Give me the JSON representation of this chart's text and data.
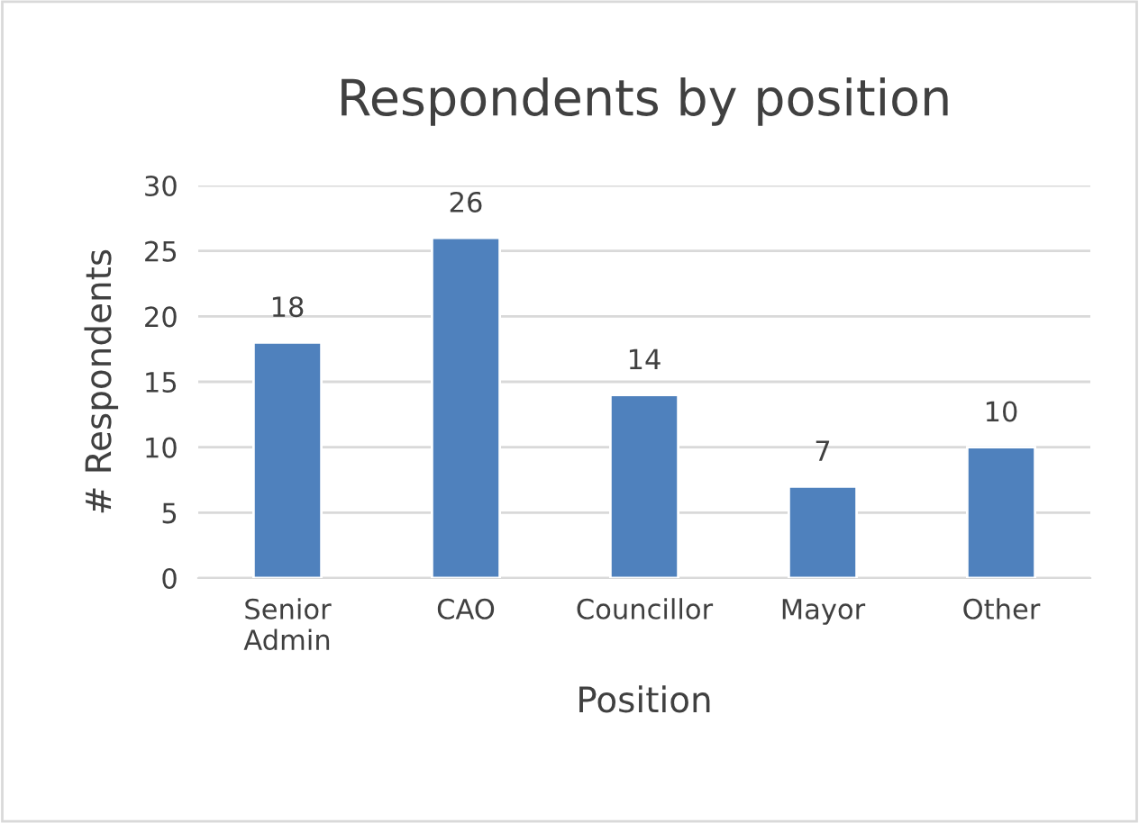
{
  "chart_data": {
    "type": "bar",
    "title": "Respondents by position",
    "xlabel": "Position",
    "ylabel": "# Respondents",
    "categories": [
      "Senior Admin",
      "CAO",
      "Councillor",
      "Mayor",
      "Other"
    ],
    "values": [
      18,
      26,
      14,
      7,
      10
    ],
    "color": "#4f81bd",
    "ylim": [
      0,
      30
    ],
    "yticks": [
      0,
      5,
      10,
      15,
      20,
      25,
      30
    ],
    "grid": "y",
    "data_labels": true
  }
}
